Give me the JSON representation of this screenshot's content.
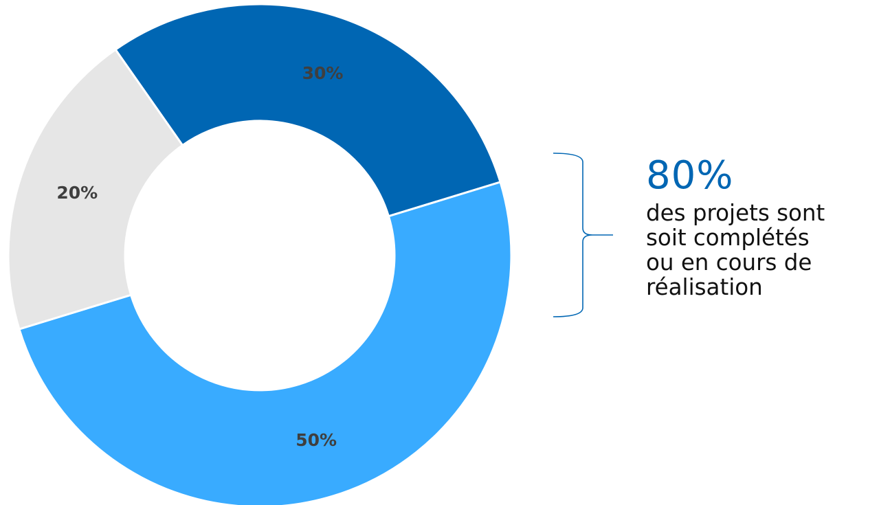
{
  "chart_data": {
    "type": "pie",
    "variant": "donut",
    "slices": [
      {
        "value": 30,
        "label": "30%",
        "color": "#0066b3"
      },
      {
        "value": 50,
        "label": "50%",
        "color": "#39abff"
      },
      {
        "value": 20,
        "label": "20%",
        "color": "#e6e6e6"
      }
    ],
    "start_angle_deg": -17,
    "label_color": "#3f3f3f",
    "annotation": {
      "value": "80%",
      "value_color": "#0066b3",
      "text": "des projets sont soit complétés ou en cours de réalisation",
      "lines": [
        "des projets sont",
        "soit complétés",
        "ou en cours de",
        "réalisation"
      ],
      "bracket_color": "#0066b3",
      "brackets_slices": [
        "30%",
        "50%"
      ]
    }
  }
}
